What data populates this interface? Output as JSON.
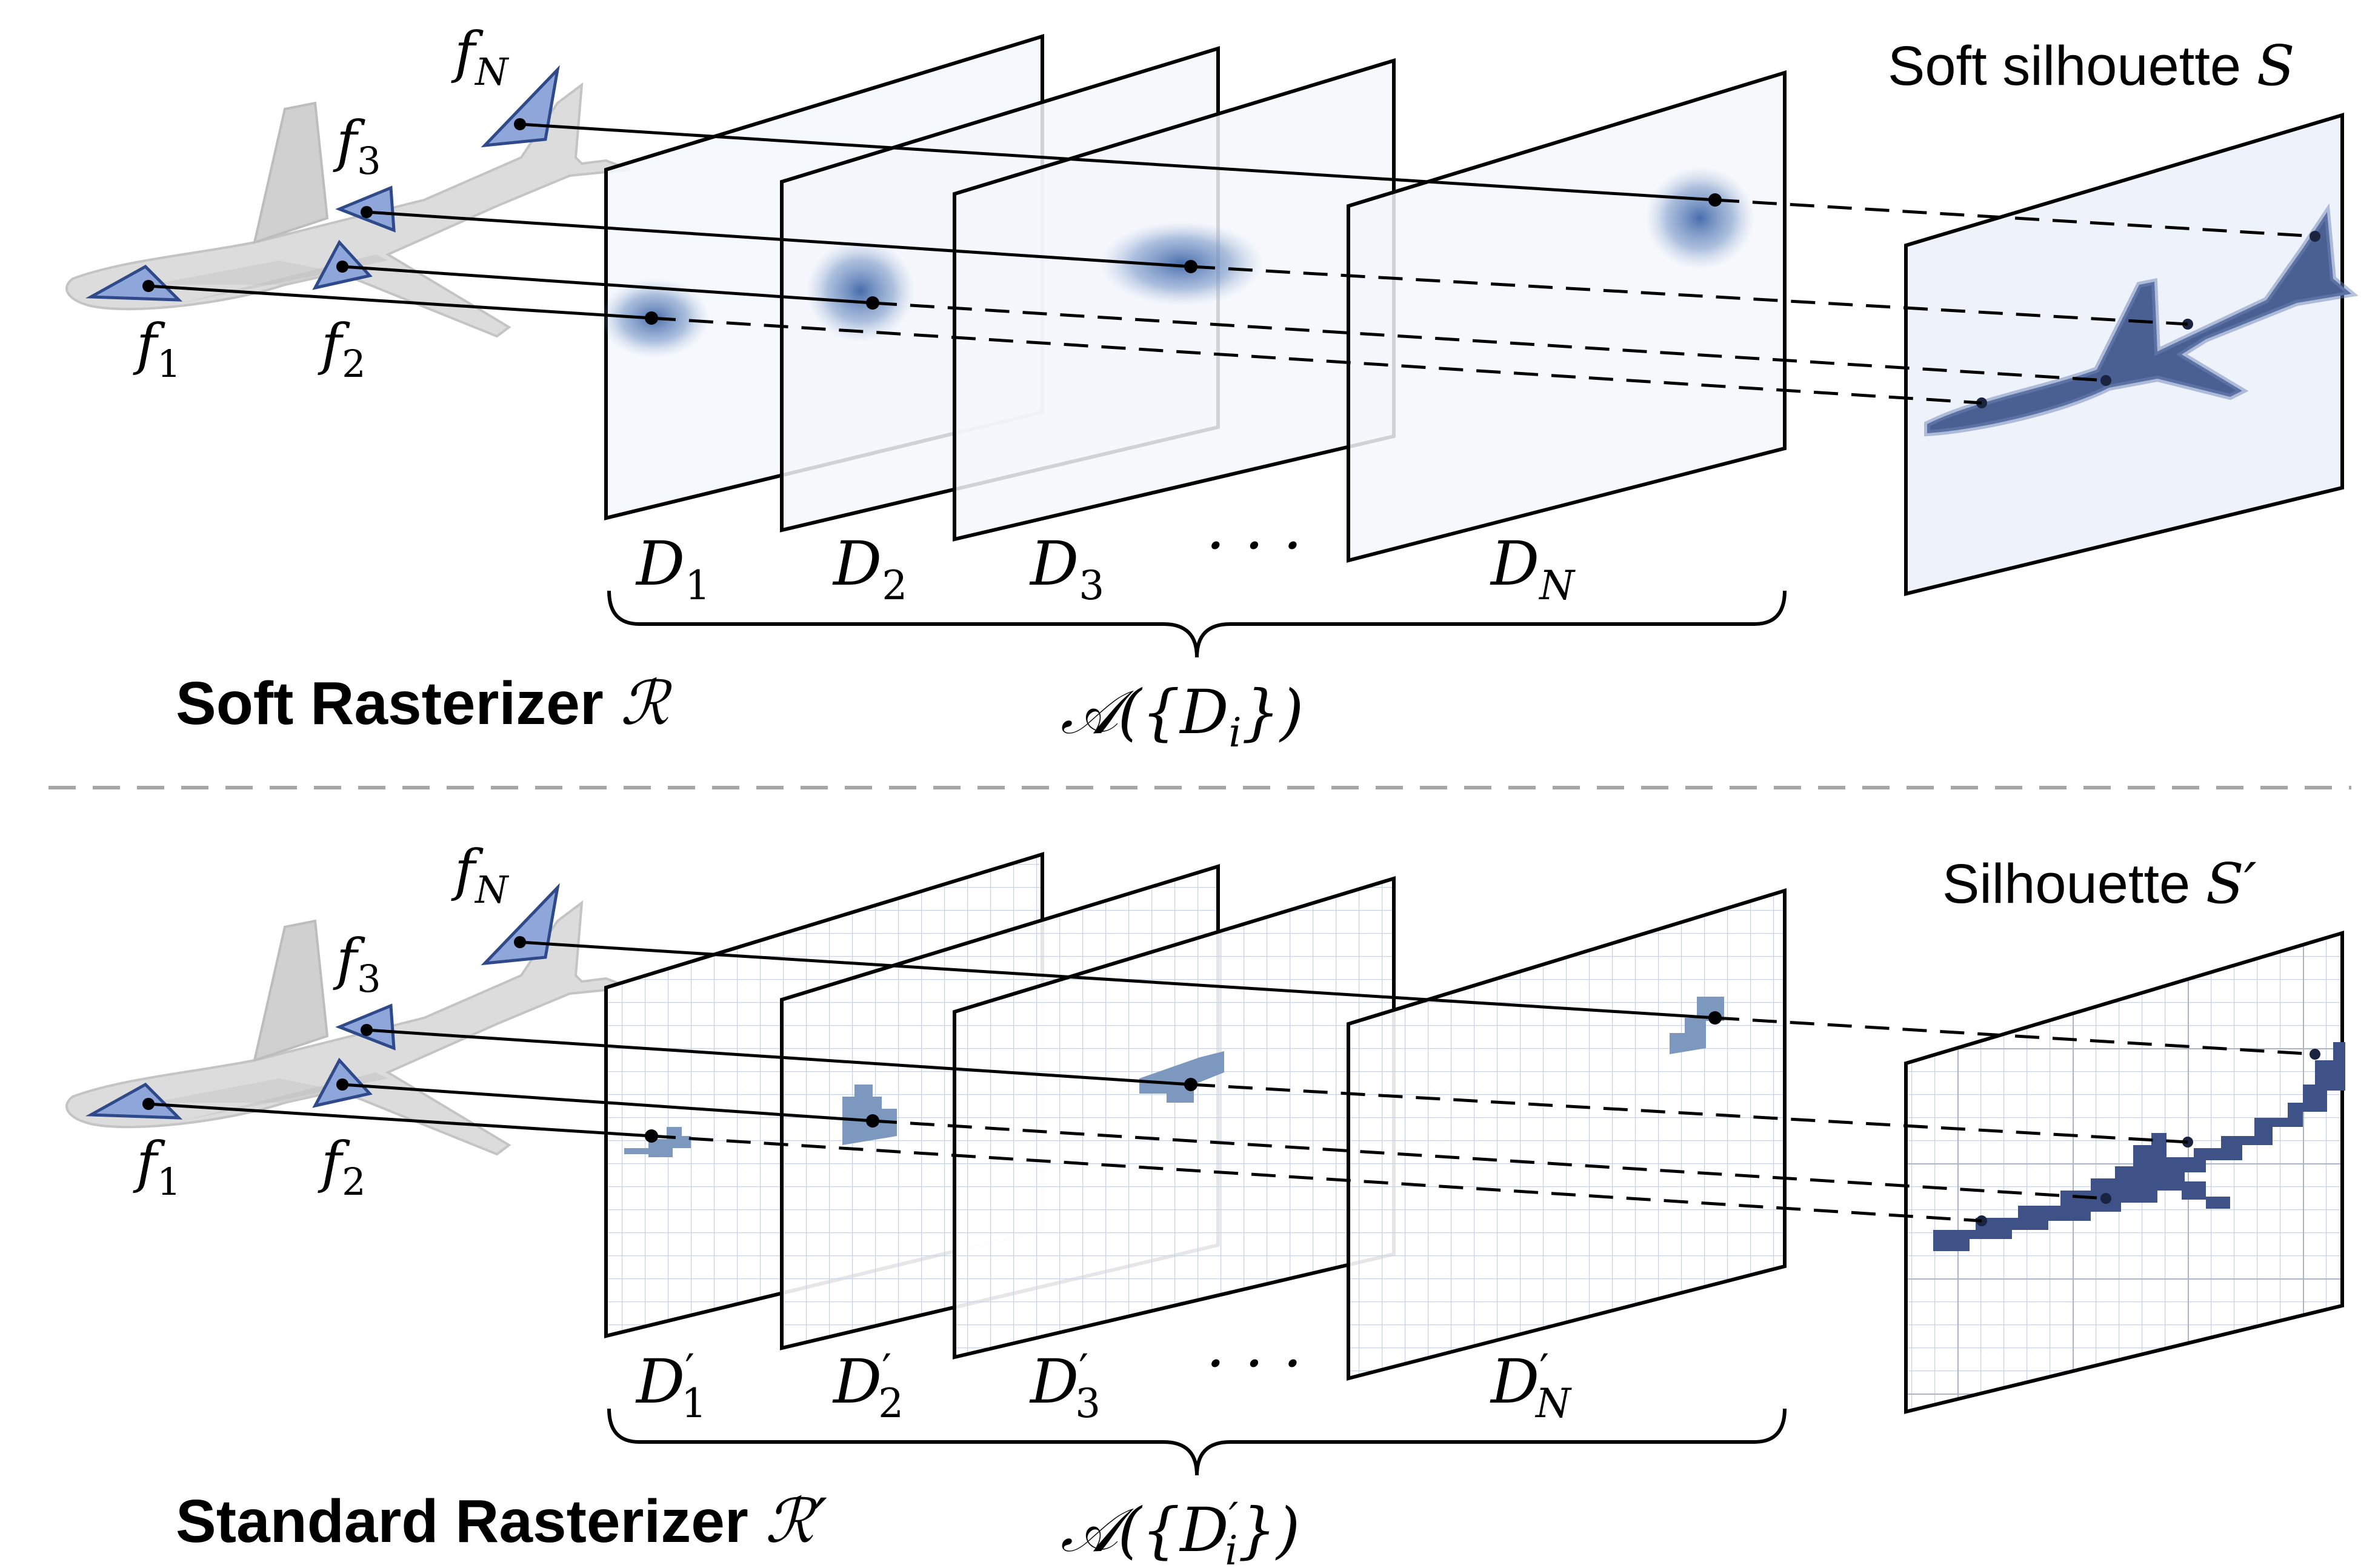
{
  "top_panel": {
    "title": "Soft Rasterizer",
    "title_symbol": "ℛ",
    "output_label": "Soft silhouette",
    "output_symbol": "S",
    "face_labels": [
      {
        "base": "f",
        "sub": "1"
      },
      {
        "base": "f",
        "sub": "2"
      },
      {
        "base": "f",
        "sub": "3"
      },
      {
        "base": "f",
        "sub": "N"
      }
    ],
    "plane_labels": [
      {
        "base": "D",
        "prime": "",
        "sub": "1"
      },
      {
        "base": "D",
        "prime": "",
        "sub": "2"
      },
      {
        "base": "D",
        "prime": "",
        "sub": "3"
      },
      {
        "base": "D",
        "prime": "",
        "sub": "N"
      }
    ],
    "ellipsis": "· · ·",
    "aggregation": {
      "func": "𝒜",
      "open": "({",
      "base": "D",
      "prime": "",
      "sub": "i",
      "close": "})"
    }
  },
  "bottom_panel": {
    "title": "Standard Rasterizer",
    "title_symbol": "ℛ′",
    "output_label": "Silhouette",
    "output_symbol": "S′",
    "face_labels": [
      {
        "base": "f",
        "sub": "1"
      },
      {
        "base": "f",
        "sub": "2"
      },
      {
        "base": "f",
        "sub": "3"
      },
      {
        "base": "f",
        "sub": "N"
      }
    ],
    "plane_labels": [
      {
        "base": "D",
        "prime": "′",
        "sub": "1"
      },
      {
        "base": "D",
        "prime": "′",
        "sub": "2"
      },
      {
        "base": "D",
        "prime": "′",
        "sub": "3"
      },
      {
        "base": "D",
        "prime": "′",
        "sub": "N"
      }
    ],
    "ellipsis": "· · ·",
    "aggregation": {
      "func": "𝒜",
      "open": "({",
      "base": "D",
      "prime": "′",
      "sub": "i",
      "close": "})"
    }
  },
  "colors": {
    "airplane": "#d9d9d9",
    "face_fill": "#8ea6d9",
    "face_stroke": "#2f4a8a",
    "plane_fill": "#f4f7fc",
    "blob": "#5b7fb5",
    "pixel_blob": "#7d98bf",
    "silhouette": "#4a5f92",
    "grid": "#c9d2e0",
    "divider": "#a6a6a6"
  }
}
